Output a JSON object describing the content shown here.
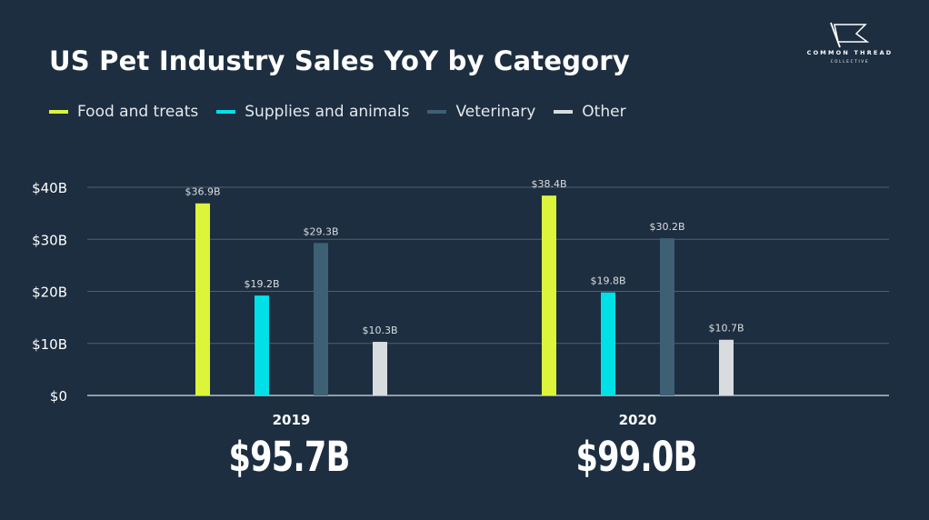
{
  "title": "US Pet Industry Sales YoY by Category",
  "logo": {
    "line1": "COMMON THREAD",
    "line2": "COLLECTIVE"
  },
  "legend": [
    {
      "label": "Food and treats",
      "color": "#dcf53a"
    },
    {
      "label": "Supplies and animals",
      "color": "#00e0e6"
    },
    {
      "label": "Veterinary",
      "color": "#3d6075"
    },
    {
      "label": "Other",
      "color": "#d9dcde"
    }
  ],
  "totals": [
    "$95.7B",
    "$99.0B"
  ],
  "chart_data": {
    "type": "bar",
    "categories": [
      "2019",
      "2020"
    ],
    "series": [
      {
        "name": "Food and treats",
        "color": "#dcf53a",
        "values": [
          36.9,
          38.4
        ],
        "labels": [
          "$36.9B",
          "$38.4B"
        ]
      },
      {
        "name": "Supplies and animals",
        "color": "#00e0e6",
        "values": [
          19.2,
          19.8
        ],
        "labels": [
          "$19.2B",
          "$19.8B"
        ]
      },
      {
        "name": "Veterinary",
        "color": "#3d6075",
        "values": [
          29.3,
          30.2
        ],
        "labels": [
          "$29.3B",
          "$30.2B"
        ]
      },
      {
        "name": "Other",
        "color": "#d9dcde",
        "values": [
          10.3,
          10.7
        ],
        "labels": [
          "$10.3B",
          "$10.7B"
        ]
      }
    ],
    "yticks": [
      0,
      10,
      20,
      30,
      40
    ],
    "ytick_labels": [
      "$0",
      "$10B",
      "$20B",
      "$30B",
      "$40B"
    ],
    "ylim": [
      0,
      40
    ],
    "grid": true,
    "legend_position": "top-left"
  }
}
